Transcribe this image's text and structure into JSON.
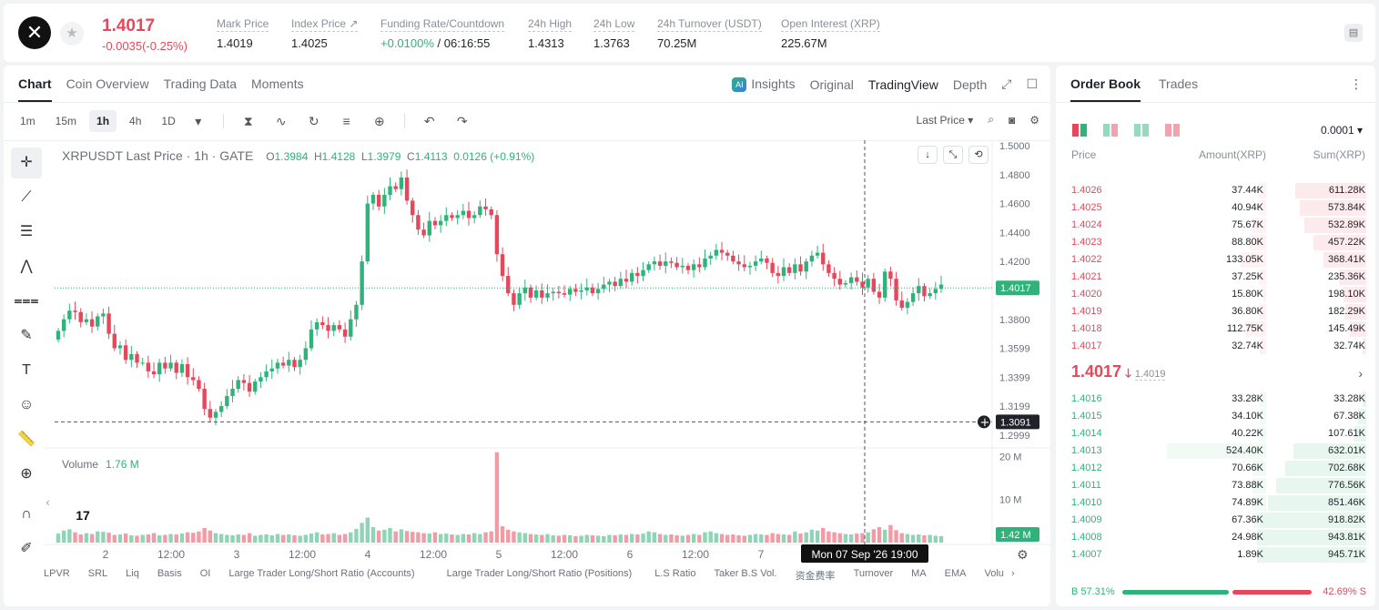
{
  "header": {
    "logo_glyph": "✕",
    "star_glyph": "★",
    "last_price": "1.4017",
    "change": "-0.0035(-0.25%)",
    "stats": [
      {
        "label": "Mark Price",
        "value": "1.4019"
      },
      {
        "label": "Index Price ↗",
        "value": "1.4025"
      },
      {
        "label": "Funding Rate/Countdown",
        "value_green": "+0.0100%",
        "value": " / 06:16:55"
      },
      {
        "label": "24h High",
        "value": "1.4313"
      },
      {
        "label": "24h Low",
        "value": "1.3763"
      },
      {
        "label": "24h Turnover (USDT)",
        "value": "70.25M"
      },
      {
        "label": "Open Interest (XRP)",
        "value": "225.67M"
      }
    ]
  },
  "chart_tabs": [
    "Chart",
    "Coin Overview",
    "Trading Data",
    "Moments"
  ],
  "chart_views": {
    "insights": "Insights",
    "ai_badge": "AI",
    "original": "Original",
    "tradingview": "TradingView",
    "depth": "Depth"
  },
  "timeframes": [
    "1m",
    "15m",
    "1h",
    "4h",
    "1D"
  ],
  "active_timeframe": "1h",
  "price_type": "Last Price ▾",
  "legend": {
    "symbol": "XRPUSDT Last Price · 1h · GATE",
    "o_label": "O",
    "o": "1.3984",
    "h_label": "H",
    "h": "1.4128",
    "l_label": "L",
    "l": "1.3979",
    "c_label": "C",
    "c": "1.4113",
    "chg": "0.0126 (+0.91%)"
  },
  "volume_legend": {
    "label": "Volume",
    "value": "1.76 M"
  },
  "tv_logo": "17",
  "indicators": [
    "LPVR",
    "SRL",
    "Liq",
    "Basis",
    "OI",
    "Large Trader Long/Short Ratio (Accounts)",
    "Large Trader Long/Short Ratio (Positions)",
    "L.S Ratio",
    "Taker B.S Vol.",
    "资金费率",
    "Turnover",
    "MA",
    "EMA",
    "Volu"
  ],
  "chart_data": {
    "type": "candlestick",
    "symbol": "XRPUSDT",
    "interval": "1h",
    "y_ticks": [
      "1.5000",
      "1.4800",
      "1.4600",
      "1.4400",
      "1.4200",
      "1.4000",
      "1.3800",
      "1.3599",
      "1.3399",
      "1.3199",
      "1.2999"
    ],
    "ylim": [
      1.2999,
      1.5
    ],
    "current_price": 1.4017,
    "current_price_label": "1.4017",
    "crosshair_price": 1.3091,
    "crosshair_price_label": "1.3091",
    "crosshair_time_label": "Mon 07 Sep '26   19:00",
    "x_ticks": [
      "2",
      "12:00",
      "3",
      "12:00",
      "4",
      "12:00",
      "5",
      "12:00",
      "6",
      "12:00",
      "7",
      "12:00"
    ],
    "volume_ticks": [
      "20 M",
      "10 M"
    ],
    "volume_current_label": "1.42 M",
    "volume_max": 22,
    "closes": [
      1.372,
      1.38,
      1.386,
      1.385,
      1.378,
      1.38,
      1.375,
      1.382,
      1.384,
      1.37,
      1.36,
      1.362,
      1.352,
      1.356,
      1.35,
      1.35,
      1.344,
      1.342,
      1.35,
      1.346,
      1.35,
      1.343,
      1.349,
      1.34,
      1.338,
      1.332,
      1.318,
      1.312,
      1.316,
      1.32,
      1.327,
      1.332,
      1.338,
      1.336,
      1.33,
      1.337,
      1.34,
      1.344,
      1.346,
      1.35,
      1.348,
      1.352,
      1.347,
      1.352,
      1.36,
      1.373,
      1.378,
      1.376,
      1.372,
      1.376,
      1.373,
      1.368,
      1.38,
      1.39,
      1.42,
      1.46,
      1.466,
      1.458,
      1.466,
      1.472,
      1.47,
      1.478,
      1.462,
      1.452,
      1.442,
      1.438,
      1.448,
      1.445,
      1.448,
      1.452,
      1.45,
      1.452,
      1.455,
      1.45,
      1.452,
      1.458,
      1.456,
      1.452,
      1.425,
      1.41,
      1.398,
      1.39,
      1.398,
      1.402,
      1.395,
      1.4,
      1.395,
      1.398,
      1.399,
      1.398,
      1.397,
      1.401,
      1.399,
      1.4,
      1.402,
      1.398,
      1.401,
      1.404,
      1.406,
      1.403,
      1.408,
      1.406,
      1.412,
      1.41,
      1.414,
      1.418,
      1.42,
      1.417,
      1.42,
      1.419,
      1.416,
      1.417,
      1.414,
      1.418,
      1.416,
      1.422,
      1.424,
      1.428,
      1.426,
      1.424,
      1.42,
      1.418,
      1.416,
      1.417,
      1.42,
      1.422,
      1.419,
      1.412,
      1.41,
      1.416,
      1.412,
      1.418,
      1.413,
      1.42,
      1.424,
      1.426,
      1.418,
      1.412,
      1.408,
      1.404,
      1.405,
      1.409,
      1.406,
      1.402,
      1.408,
      1.399,
      1.395,
      1.413,
      1.408,
      1.393,
      1.388,
      1.392,
      1.398,
      1.403,
      1.396,
      1.398,
      1.401,
      1.404
    ],
    "volumes": [
      2.1,
      2.8,
      3.1,
      2.4,
      1.9,
      2.2,
      2.0,
      2.6,
      2.5,
      2.3,
      1.8,
      1.9,
      2.1,
      1.7,
      1.6,
      1.8,
      1.9,
      2.2,
      1.7,
      1.8,
      2.0,
      1.9,
      2.1,
      2.4,
      2.3,
      2.6,
      3.4,
      2.8,
      2.2,
      2.0,
      1.8,
      1.7,
      1.9,
      1.8,
      2.2,
      1.6,
      1.8,
      1.9,
      1.7,
      2.0,
      1.8,
      1.9,
      1.7,
      1.6,
      1.8,
      2.1,
      2.4,
      1.9,
      2.0,
      2.2,
      1.8,
      2.0,
      2.4,
      3.2,
      4.6,
      5.8,
      3.6,
      2.8,
      3.0,
      3.4,
      2.6,
      3.1,
      2.7,
      2.5,
      2.4,
      2.2,
      2.1,
      2.4,
      2.0,
      2.1,
      1.9,
      1.8,
      2.0,
      1.9,
      2.2,
      2.0,
      2.4,
      2.6,
      21.0,
      3.8,
      3.0,
      2.6,
      2.4,
      2.2,
      2.0,
      1.9,
      1.8,
      2.0,
      1.7,
      1.6,
      1.8,
      1.7,
      1.5,
      1.6,
      1.8,
      1.7,
      1.6,
      1.5,
      1.8,
      1.7,
      1.9,
      1.8,
      2.0,
      1.9,
      2.1,
      2.6,
      2.4,
      2.0,
      1.8,
      1.9,
      1.7,
      1.6,
      1.8,
      2.0,
      1.8,
      2.4,
      2.6,
      2.2,
      2.0,
      1.8,
      1.9,
      1.7,
      1.6,
      1.8,
      2.0,
      1.9,
      1.8,
      2.2,
      2.0,
      1.9,
      1.8,
      2.6,
      2.1,
      2.4,
      3.0,
      2.8,
      3.4,
      2.6,
      2.4,
      2.2,
      2.0,
      1.9,
      2.1,
      2.2,
      2.4,
      3.1,
      3.6,
      3.0,
      4.1,
      2.9,
      2.2,
      2.0,
      1.8,
      1.9,
      1.7,
      1.8,
      1.6,
      1.5
    ]
  },
  "order_book": {
    "tabs": [
      "Order Book",
      "Trades"
    ],
    "precision": "0.0001 ▾",
    "columns": {
      "price": "Price",
      "amount": "Amount(XRP)",
      "sum": "Sum(XRP)"
    },
    "max_sum": 945.71,
    "asks": [
      {
        "price": "1.4026",
        "amount": "37.44K",
        "sum": "611.28K",
        "sum_v": 611.28,
        "amt_v": 37.44
      },
      {
        "price": "1.4025",
        "amount": "40.94K",
        "sum": "573.84K",
        "sum_v": 573.84,
        "amt_v": 40.94
      },
      {
        "price": "1.4024",
        "amount": "75.67K",
        "sum": "532.89K",
        "sum_v": 532.89,
        "amt_v": 75.67
      },
      {
        "price": "1.4023",
        "amount": "88.80K",
        "sum": "457.22K",
        "sum_v": 457.22,
        "amt_v": 88.8
      },
      {
        "price": "1.4022",
        "amount": "133.05K",
        "sum": "368.41K",
        "sum_v": 368.41,
        "amt_v": 133.05
      },
      {
        "price": "1.4021",
        "amount": "37.25K",
        "sum": "235.36K",
        "sum_v": 235.36,
        "amt_v": 37.25
      },
      {
        "price": "1.4020",
        "amount": "15.80K",
        "sum": "198.10K",
        "sum_v": 198.1,
        "amt_v": 15.8
      },
      {
        "price": "1.4019",
        "amount": "36.80K",
        "sum": "182.29K",
        "sum_v": 182.29,
        "amt_v": 36.8
      },
      {
        "price": "1.4018",
        "amount": "112.75K",
        "sum": "145.49K",
        "sum_v": 145.49,
        "amt_v": 112.75
      },
      {
        "price": "1.4017",
        "amount": "32.74K",
        "sum": "32.74K",
        "sum_v": 32.74,
        "amt_v": 32.74
      }
    ],
    "mid_price": "1.4017",
    "mid_arrow": "🡓",
    "mark_price": "1.4019",
    "bids": [
      {
        "price": "1.4016",
        "amount": "33.28K",
        "sum": "33.28K",
        "sum_v": 33.28,
        "amt_v": 33.28
      },
      {
        "price": "1.4015",
        "amount": "34.10K",
        "sum": "67.38K",
        "sum_v": 67.38,
        "amt_v": 34.1
      },
      {
        "price": "1.4014",
        "amount": "40.22K",
        "sum": "107.61K",
        "sum_v": 107.61,
        "amt_v": 40.22
      },
      {
        "price": "1.4013",
        "amount": "524.40K",
        "sum": "632.01K",
        "sum_v": 632.01,
        "amt_v": 524.4
      },
      {
        "price": "1.4012",
        "amount": "70.66K",
        "sum": "702.68K",
        "sum_v": 702.68,
        "amt_v": 70.66
      },
      {
        "price": "1.4011",
        "amount": "73.88K",
        "sum": "776.56K",
        "sum_v": 776.56,
        "amt_v": 73.88
      },
      {
        "price": "1.4010",
        "amount": "74.89K",
        "sum": "851.46K",
        "sum_v": 851.46,
        "amt_v": 74.89
      },
      {
        "price": "1.4009",
        "amount": "67.36K",
        "sum": "918.82K",
        "sum_v": 918.82,
        "amt_v": 67.36
      },
      {
        "price": "1.4008",
        "amount": "24.98K",
        "sum": "943.81K",
        "sum_v": 943.81,
        "amt_v": 24.98
      },
      {
        "price": "1.4007",
        "amount": "1.89K",
        "sum": "945.71K",
        "sum_v": 945.71,
        "amt_v": 1.89
      }
    ],
    "buy_ratio": 57.31,
    "buy_label": "B 57.31%",
    "sell_label": "42.69% S"
  },
  "colors": {
    "up": "#2fb37a",
    "down": "#e5485b",
    "up_fill": "#e7f6ee",
    "down_fill": "#fdeaec"
  }
}
